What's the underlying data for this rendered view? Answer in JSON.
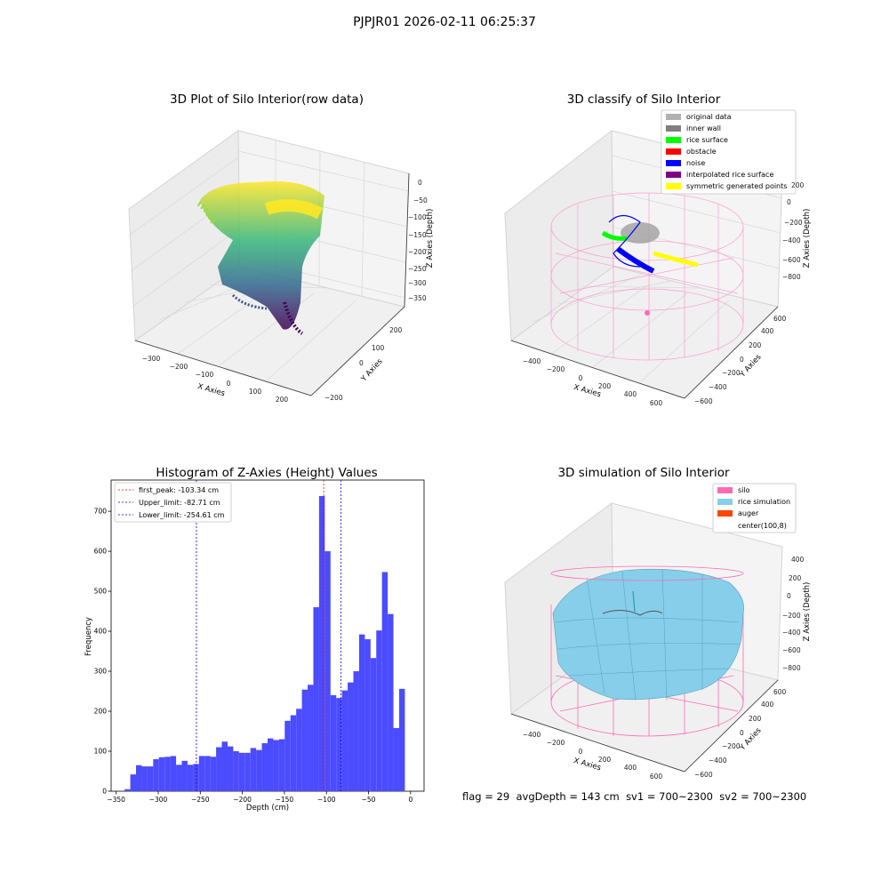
{
  "suptitle": "PJPJR01 2026-02-11 06:25:37",
  "footer": {
    "flag": "flag = 29",
    "avg": "avgDepth = 143 cm",
    "sv1": "sv1 = 700~2300",
    "sv2": "sv2 = 700~2300"
  },
  "colors": {
    "hist_bar": "#4b4bff",
    "peak_line": "#ff0000",
    "limit_line": "#0000ff",
    "silo": "#ff69b4",
    "rice": "#87ceeb",
    "auger": "#ff4500"
  },
  "chart_data": [
    {
      "type": "scatter",
      "title": "3D Plot of Silo Interior(row data)",
      "xlabel": "X Axies",
      "ylabel": "Y Axies",
      "zlabel": "Z Axies (Depth)",
      "x_ticks": [
        "−300",
        "−200",
        "−100",
        "0",
        "100",
        "200"
      ],
      "y_ticks": [
        "−200",
        "0",
        "100",
        "200"
      ],
      "z_ticks": [
        "0",
        "−50",
        "−100",
        "−150",
        "−200",
        "−250",
        "−300",
        "−350"
      ],
      "colormap": "viridis"
    },
    {
      "type": "scatter",
      "title": "3D classify of Silo Interior",
      "xlabel": "X Axies",
      "ylabel": "Y Axies",
      "zlabel": "Z Axies (Depth)",
      "x_ticks": [
        "−400",
        "−200",
        "0",
        "200",
        "400",
        "600"
      ],
      "y_ticks": [
        "−600",
        "−400",
        "−200",
        "0",
        "200",
        "400",
        "600"
      ],
      "z_ticks": [
        "200",
        "0",
        "−200",
        "−400",
        "−600",
        "−800"
      ],
      "legend": [
        {
          "label": "original data",
          "color": "#b0b0b0"
        },
        {
          "label": "inner wall",
          "color": "#808080"
        },
        {
          "label": "rice surface",
          "color": "#00ff00"
        },
        {
          "label": "obstacle",
          "color": "#ff0000"
        },
        {
          "label": "noise",
          "color": "#0000ff"
        },
        {
          "label": "interpolated rice surface",
          "color": "#800080"
        },
        {
          "label": "symmetric generated points",
          "color": "#ffff00"
        }
      ],
      "legend_loc": "top-right"
    },
    {
      "type": "bar",
      "title": "Histogram of Z-Axies (Height) Values",
      "xlabel": "Depth (cm)",
      "ylabel": "Frequency",
      "xlim": [
        -356,
        16
      ],
      "ylim": [
        0,
        778
      ],
      "x_ticks": [
        -350,
        -300,
        -250,
        -200,
        -150,
        -100,
        -50,
        0
      ],
      "x_tick_labels": [
        "−350",
        "−300",
        "−250",
        "−200",
        "−150",
        "−100",
        "−50",
        "0"
      ],
      "y_ticks": [
        0,
        100,
        200,
        300,
        400,
        500,
        600,
        700
      ],
      "bin_start": -340,
      "bin_width": 6.8,
      "values": [
        5,
        42,
        65,
        62,
        62,
        80,
        85,
        86,
        88,
        66,
        76,
        66,
        68,
        88,
        88,
        86,
        110,
        124,
        112,
        100,
        96,
        96,
        108,
        103,
        120,
        132,
        128,
        130,
        176,
        190,
        206,
        254,
        266,
        460,
        738,
        600,
        240,
        233,
        252,
        272,
        300,
        392,
        380,
        333,
        402,
        548,
        443,
        158,
        256
      ],
      "vlines": [
        {
          "label": "first_peak: -103.34 cm",
          "x": -103.34,
          "color": "#ff0000"
        },
        {
          "label": "Upper_limit: -82.71 cm",
          "x": -82.71,
          "color": "#0000ff"
        },
        {
          "label": "Lower_limit: -254.61 cm",
          "x": -254.61,
          "color": "#0000ff"
        }
      ],
      "legend_loc": "top-left"
    },
    {
      "type": "scatter",
      "title": "3D simulation of Silo Interior",
      "xlabel": "X Axies",
      "ylabel": "Y Axies",
      "zlabel": "Z Axies (Depth)",
      "x_ticks": [
        "−400",
        "−200",
        "0",
        "200",
        "400",
        "600"
      ],
      "y_ticks": [
        "−600",
        "−400",
        "−200",
        "0",
        "200",
        "400",
        "600"
      ],
      "z_ticks": [
        "400",
        "200",
        "0",
        "−200",
        "−400",
        "−600",
        "−800"
      ],
      "legend": [
        {
          "label": "silo",
          "color": "#ff69b4"
        },
        {
          "label": "rice simulation",
          "color": "#87ceeb"
        },
        {
          "label": "auger",
          "color": "#ff4500"
        },
        {
          "label": "center(100,8)",
          "color": ""
        }
      ],
      "legend_loc": "top-right"
    }
  ]
}
